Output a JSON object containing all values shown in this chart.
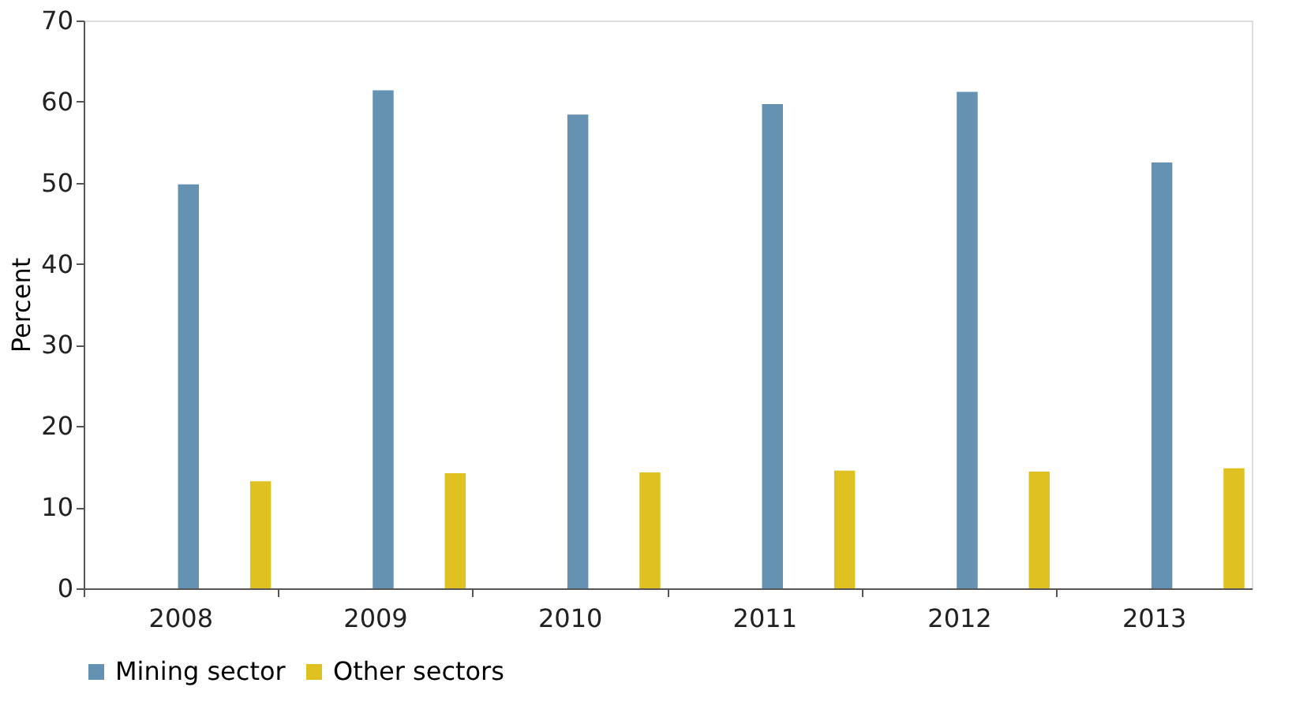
{
  "chart_data": {
    "type": "bar",
    "ylabel": "Percent",
    "categories": [
      "2008",
      "2009",
      "2010",
      "2011",
      "2012",
      "2013"
    ],
    "series": [
      {
        "name": "Mining sector",
        "color": "#6591b2",
        "values": [
          49.8,
          61.4,
          58.4,
          59.7,
          61.2,
          52.5
        ]
      },
      {
        "name": "Other sectors",
        "color": "#dfc122",
        "values": [
          13.2,
          14.2,
          14.3,
          14.5,
          14.4,
          14.8
        ]
      }
    ],
    "ylim": [
      0,
      70
    ],
    "yticks": [
      0,
      10,
      20,
      30,
      40,
      50,
      60,
      70
    ],
    "grid": false,
    "legend": "bottom"
  }
}
